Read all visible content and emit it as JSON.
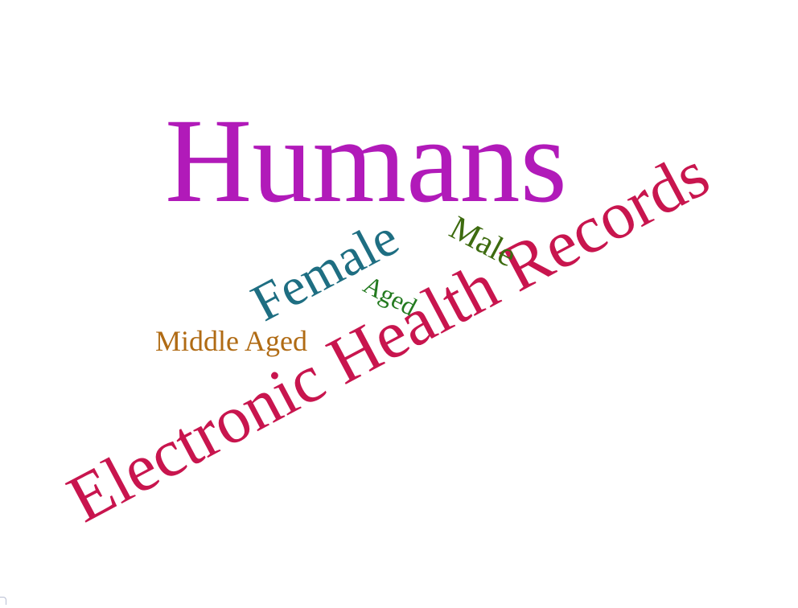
{
  "words": [
    {
      "id": "humans",
      "text": "Humans",
      "color": "#b11ab9",
      "angle": 0
    },
    {
      "id": "ehr",
      "text": "Electronic Health Records",
      "color": "#c8154e",
      "angle": -28
    },
    {
      "id": "female",
      "text": "Female",
      "color": "#1e6e82",
      "angle": -28
    },
    {
      "id": "male",
      "text": "Male",
      "color": "#3d6b0f",
      "angle": 28
    },
    {
      "id": "aged",
      "text": "Aged",
      "color": "#237a1f",
      "angle": 28
    },
    {
      "id": "middle-aged",
      "text": "Middle Aged",
      "color": "#b06b14",
      "angle": 0
    }
  ]
}
